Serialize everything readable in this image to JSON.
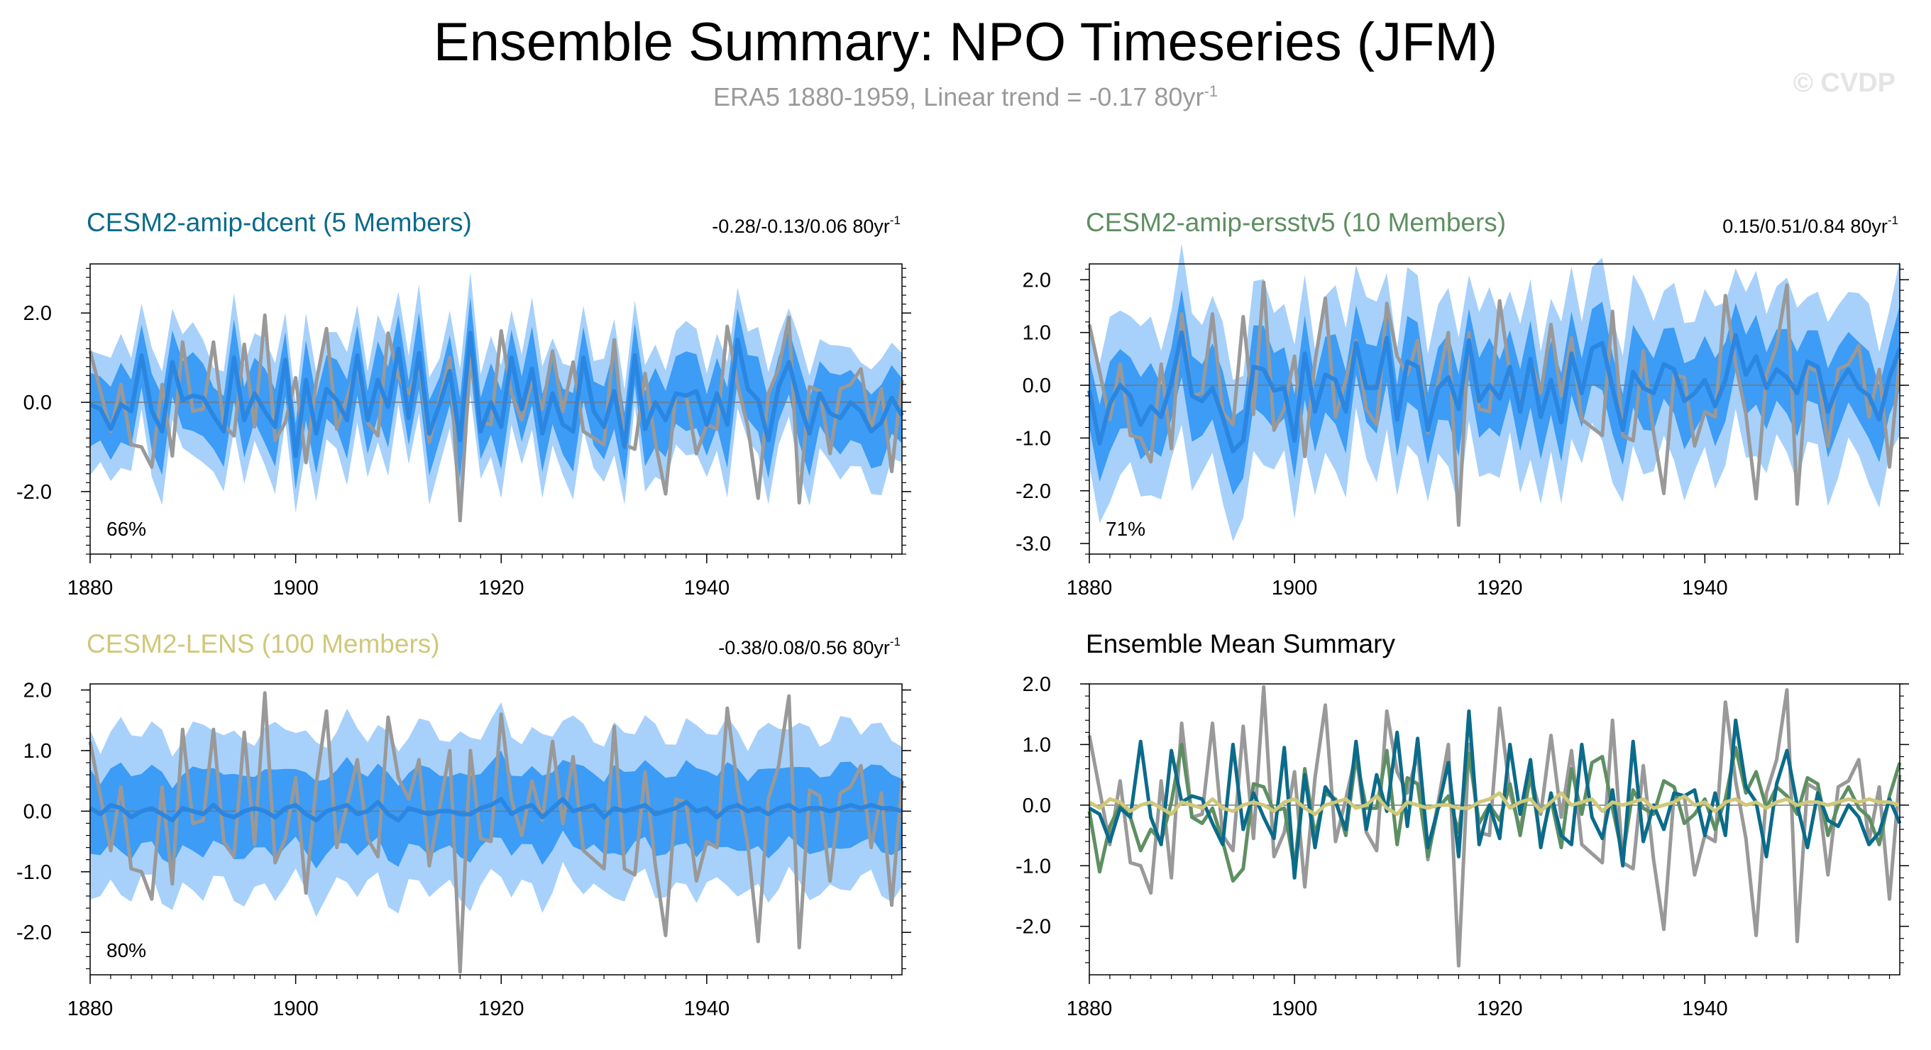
{
  "header": {
    "title": "Ensemble Summary: NPO Timeseries (JFM)",
    "subtitle_main": "ERA5 1880-1959, Linear trend = -0.17 80yr",
    "subtitle_sup": "-1",
    "copyright": "© CVDP"
  },
  "colors": {
    "obs": "#999999",
    "ens_mean_line": "#2a86e0",
    "inner_band": "#3d9cf5",
    "outer_band": "#a7d1fb",
    "dcent": "#0b6b8a",
    "ersstv5": "#5e8f62",
    "lens": "#cfc87a"
  },
  "chart_data": [
    {
      "id": "dcent",
      "type": "line",
      "title": "CESM2-amip-dcent (5 Members)",
      "trend_text": "-0.28/-0.13/0.06 80yr",
      "trend_sup": "-1",
      "pct_label": "66%",
      "xlim": [
        1880,
        1959
      ],
      "ylim": [
        -3.4,
        3.1
      ],
      "xticks": [
        1880,
        1900,
        1920,
        1940
      ],
      "yticks": [
        2.0,
        0.0,
        -2.0
      ],
      "start_year": 1880,
      "obs": [
        1.15,
        0.25,
        -0.65,
        0.4,
        -0.95,
        -1.0,
        -1.45,
        0.4,
        -1.2,
        1.35,
        -0.2,
        -0.15,
        1.35,
        -0.5,
        -0.75,
        1.3,
        -0.55,
        1.95,
        -0.85,
        -0.45,
        0.55,
        -1.35,
        0.45,
        1.65,
        -0.6,
        0.1,
        0.85,
        -0.45,
        -0.75,
        1.55,
        0.55,
        0.2,
        0.85,
        -0.9,
        0.05,
        1.0,
        -2.65,
        1.0,
        -0.45,
        -0.5,
        1.6,
        0.2,
        -0.4,
        0.5,
        -0.15,
        1.15,
        -0.2,
        0.9,
        -0.65,
        -0.8,
        -0.95,
        1.4,
        -0.95,
        -1.05,
        0.65,
        -0.9,
        -2.05,
        0.2,
        0.15,
        -1.15,
        -0.5,
        -0.6,
        1.7,
        0.4,
        -0.55,
        -2.15,
        0.2,
        0.75,
        1.9,
        -2.25,
        0.35,
        0.25,
        -1.15,
        0.3,
        0.4,
        0.75,
        -0.6,
        0.3,
        -1.55,
        0.5
      ],
      "mean": [
        -0.05,
        -0.15,
        -0.6,
        -0.05,
        -0.2,
        1.05,
        -0.2,
        -0.65,
        0.9,
        0.05,
        0.15,
        0.1,
        -0.3,
        -0.65,
        1.0,
        -0.4,
        0.2,
        -0.2,
        -0.55,
        0.95,
        -1.2,
        0.5,
        -0.7,
        0.3,
        0.05,
        -0.4,
        1.05,
        -0.4,
        0.5,
        -0.1,
        1.2,
        -0.35,
        1.1,
        -0.7,
        -0.05,
        0.7,
        -0.85,
        1.55,
        -0.65,
        0.0,
        -0.55,
        1.0,
        -0.15,
        0.75,
        -0.7,
        0.2,
        -0.5,
        -0.65,
        1.0,
        -0.2,
        -0.55,
        0.25,
        -1.0,
        1.05,
        -0.6,
        0.0,
        -0.4,
        0.2,
        0.15,
        0.25,
        -0.5,
        0.2,
        -0.5,
        1.4,
        0.3,
        0.05,
        -0.85,
        0.35,
        0.9,
        0.0,
        -0.7,
        0.2,
        -0.25,
        -0.35,
        0.0,
        -0.2,
        -0.65,
        -0.45,
        0.1,
        -0.3
      ],
      "inner_half": 0.8,
      "outer_half": 1.35
    },
    {
      "id": "ersstv5",
      "type": "line",
      "title": "CESM2-amip-ersstv5 (10 Members)",
      "trend_text": "0.15/0.51/0.84 80yr",
      "trend_sup": "-1",
      "pct_label": "71%",
      "xlim": [
        1880,
        1959
      ],
      "ylim": [
        -3.2,
        2.3
      ],
      "xticks": [
        1880,
        1900,
        1920,
        1940
      ],
      "yticks": [
        2.0,
        1.0,
        0.0,
        -1.0,
        -2.0,
        -3.0
      ],
      "start_year": 1880,
      "obs": [
        1.15,
        0.25,
        -0.65,
        0.4,
        -0.95,
        -1.0,
        -1.45,
        0.4,
        -1.2,
        1.35,
        -0.2,
        -0.15,
        1.35,
        -0.5,
        -0.75,
        1.3,
        -0.55,
        1.95,
        -0.85,
        -0.45,
        0.55,
        -1.35,
        0.45,
        1.65,
        -0.6,
        0.1,
        0.85,
        -0.45,
        -0.75,
        1.55,
        0.55,
        0.2,
        0.85,
        -0.9,
        0.05,
        1.0,
        -2.65,
        1.0,
        -0.45,
        -0.5,
        1.6,
        0.2,
        -0.4,
        0.5,
        -0.15,
        1.15,
        -0.2,
        0.9,
        -0.65,
        -0.8,
        -0.95,
        1.4,
        -0.95,
        -1.05,
        0.65,
        -0.9,
        -2.05,
        0.2,
        0.15,
        -1.15,
        -0.5,
        -0.6,
        1.7,
        0.4,
        -0.55,
        -2.15,
        0.2,
        0.75,
        1.9,
        -2.25,
        0.35,
        0.25,
        -1.15,
        0.3,
        0.4,
        0.75,
        -0.6,
        0.3,
        -1.55,
        0.5
      ],
      "mean": [
        -0.1,
        -1.1,
        -0.35,
        0.0,
        -0.2,
        -0.75,
        -0.4,
        -0.6,
        0.05,
        1.0,
        -0.2,
        -0.3,
        -0.05,
        -0.6,
        -1.25,
        -1.05,
        0.35,
        0.3,
        -0.1,
        -0.05,
        -1.05,
        0.6,
        -0.5,
        0.2,
        0.1,
        -0.5,
        0.8,
        -0.05,
        -0.05,
        0.9,
        -0.65,
        0.45,
        0.35,
        -0.85,
        -0.05,
        0.15,
        -0.45,
        0.85,
        -0.3,
        0.0,
        -0.25,
        0.35,
        -0.5,
        0.5,
        -0.6,
        0.1,
        -0.7,
        0.6,
        -0.15,
        0.7,
        0.8,
        -0.05,
        -0.85,
        0.25,
        -0.05,
        -0.15,
        0.4,
        0.3,
        -0.3,
        -0.15,
        0.1,
        -0.4,
        0.1,
        0.95,
        0.2,
        0.55,
        -0.05,
        0.3,
        0.15,
        -0.15,
        0.45,
        0.35,
        -0.5,
        0.0,
        0.3,
        -0.05,
        -0.2,
        -0.65,
        0.15,
        0.7
      ],
      "inner_half": 0.75,
      "outer_half": 1.55
    },
    {
      "id": "lens",
      "type": "line",
      "title": "CESM2-LENS (100 Members)",
      "trend_text": "-0.38/0.08/0.56 80yr",
      "trend_sup": "-1",
      "pct_label": "80%",
      "xlim": [
        1880,
        1959
      ],
      "ylim": [
        -2.7,
        2.1
      ],
      "xticks": [
        1880,
        1900,
        1920,
        1940
      ],
      "yticks": [
        2.0,
        1.0,
        0.0,
        -1.0,
        -2.0
      ],
      "start_year": 1880,
      "obs": [
        1.15,
        0.25,
        -0.65,
        0.4,
        -0.95,
        -1.0,
        -1.45,
        0.4,
        -1.2,
        1.35,
        -0.2,
        -0.15,
        1.35,
        -0.5,
        -0.75,
        1.3,
        -0.55,
        1.95,
        -0.85,
        -0.45,
        0.55,
        -1.35,
        0.45,
        1.65,
        -0.6,
        0.1,
        0.85,
        -0.45,
        -0.75,
        1.55,
        0.55,
        0.2,
        0.85,
        -0.9,
        0.05,
        1.0,
        -2.65,
        1.0,
        -0.45,
        -0.5,
        1.6,
        0.2,
        -0.4,
        0.5,
        -0.15,
        1.15,
        -0.2,
        0.9,
        -0.65,
        -0.8,
        -0.95,
        1.4,
        -0.95,
        -1.05,
        0.65,
        -0.9,
        -2.05,
        0.2,
        0.15,
        -1.15,
        -0.5,
        -0.6,
        1.7,
        0.4,
        -0.55,
        -2.15,
        0.2,
        0.75,
        1.9,
        -2.25,
        0.35,
        0.25,
        -1.15,
        0.3,
        0.4,
        0.75,
        -0.6,
        0.3,
        -1.55,
        0.5
      ],
      "mean": [
        0.05,
        -0.05,
        0.1,
        0.05,
        -0.1,
        0.0,
        0.05,
        -0.05,
        -0.15,
        0.05,
        0.0,
        -0.05,
        0.1,
        -0.05,
        -0.1,
        0.0,
        0.05,
        0.0,
        -0.1,
        0.05,
        0.1,
        -0.05,
        -0.15,
        0.0,
        0.05,
        0.1,
        -0.05,
        0.0,
        0.15,
        -0.05,
        -0.15,
        0.05,
        0.0,
        -0.05,
        0.0,
        0.0,
        -0.05,
        -0.05,
        0.05,
        0.1,
        0.2,
        -0.05,
        0.05,
        0.1,
        -0.1,
        0.05,
        0.2,
        0.0,
        0.05,
        0.1,
        -0.1,
        0.05,
        0.0,
        0.05,
        0.1,
        -0.05,
        0.0,
        0.05,
        0.15,
        0.0,
        0.05,
        -0.1,
        0.05,
        0.1,
        0.0,
        0.05,
        -0.05,
        0.05,
        0.1,
        0.0,
        0.05,
        0.05,
        0.0,
        0.05,
        0.1,
        0.05,
        0.1,
        0.05,
        0.05,
        0.0
      ],
      "inner_half": 0.65,
      "outer_half": 1.3
    },
    {
      "id": "summary",
      "type": "line",
      "title": "Ensemble Mean Summary",
      "xlim": [
        1880,
        1959
      ],
      "ylim": [
        -2.8,
        2.0
      ],
      "xticks": [
        1880,
        1900,
        1920,
        1940
      ],
      "yticks": [
        2.0,
        1.0,
        0.0,
        -1.0,
        -2.0
      ],
      "start_year": 1880,
      "series": [
        {
          "name": "ERA5",
          "ref": "obs",
          "color_key": "obs"
        },
        {
          "name": "CESM2-amip-dcent",
          "ref": "dcent",
          "color_key": "dcent"
        },
        {
          "name": "CESM2-amip-ersstv5",
          "ref": "ersstv5",
          "color_key": "ersstv5"
        },
        {
          "name": "CESM2-LENS",
          "ref": "lens",
          "color_key": "lens"
        }
      ]
    }
  ]
}
